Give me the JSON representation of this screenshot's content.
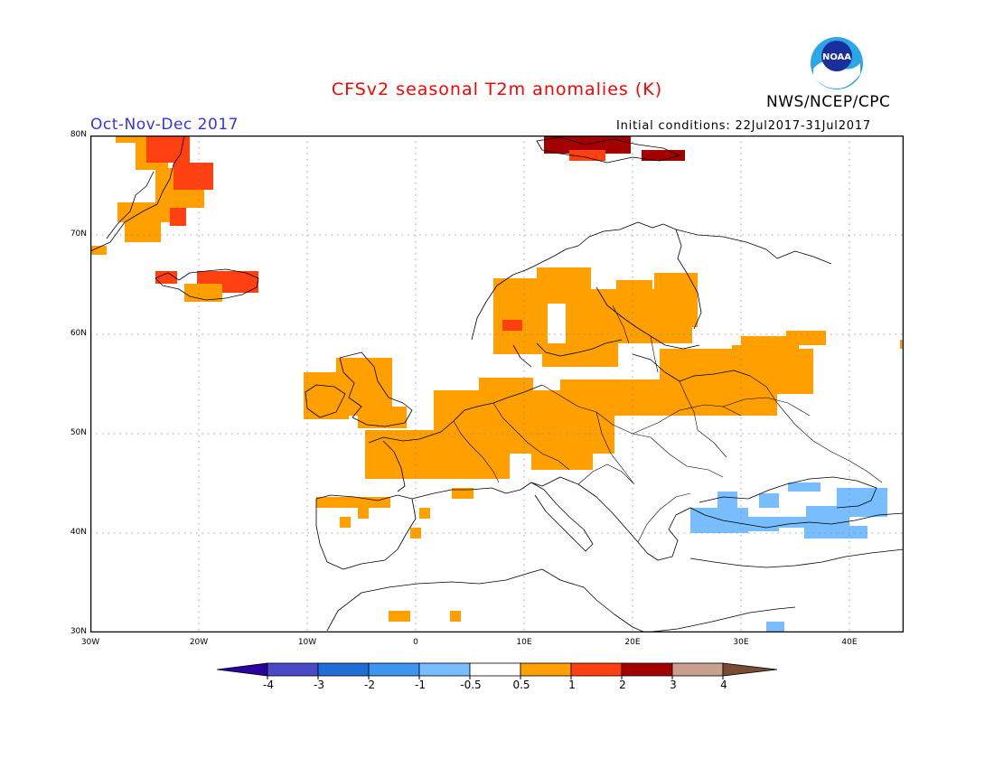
{
  "title": {
    "text": "CFSv2 seasonal T2m anomalies (K)",
    "color": "#ff0000"
  },
  "agency": {
    "text": "NWS/NCEP/CPC",
    "logo_text": "NOAA"
  },
  "season": {
    "text": "Oct-Nov-Dec 2017",
    "color": "#3333ee"
  },
  "initial_conditions": {
    "text": "Initial conditions: 22Jul2017-31Jul2017"
  },
  "map": {
    "lon_ticks": [
      "30W",
      "20W",
      "10W",
      "0",
      "10E",
      "20E",
      "30E",
      "40E"
    ],
    "lat_ticks": [
      "80N",
      "70N",
      "60N",
      "50N",
      "40N",
      "30N"
    ]
  },
  "colorbar": {
    "labels": [
      "-4",
      "-3",
      "-2",
      "-1",
      "-0.5",
      "0.5",
      "1",
      "2",
      "3",
      "4"
    ],
    "colors": [
      "#2a00a0",
      "#4a4ac8",
      "#1f6ed6",
      "#3c96f0",
      "#78beff",
      "#ffffff",
      "#ffa000",
      "#ff4010",
      "#a50000",
      "#c8a08c",
      "#7a4a32"
    ]
  },
  "colors": {
    "orange": "#ffa000",
    "red": "#ff4010",
    "darkred": "#a50000",
    "lightblue": "#78beff"
  }
}
